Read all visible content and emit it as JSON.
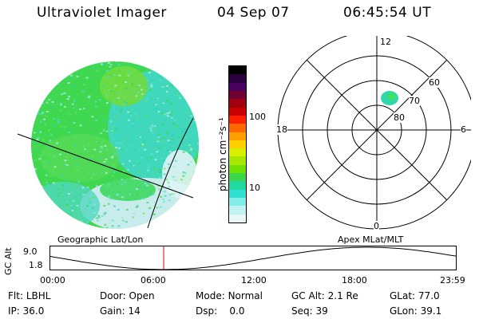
{
  "header": {
    "instrument": "Ultraviolet Imager",
    "date": "04 Sep 07",
    "time": "06:45:54 UT"
  },
  "colorbar": {
    "unit_label": "photon cm⁻²s⁻¹",
    "ticks": [
      "100",
      "10"
    ],
    "colors": [
      "#000000",
      "#2a0040",
      "#4a0060",
      "#700030",
      "#a00010",
      "#c80000",
      "#ff2000",
      "#ff6a00",
      "#ff9f00",
      "#ffd000",
      "#d8f000",
      "#a8e800",
      "#6fe000",
      "#3dd84a",
      "#20d8a0",
      "#30e0d0",
      "#80eee8",
      "#c0f4f0",
      "#e8f8f8"
    ]
  },
  "panel_labels": {
    "left": "Geographic Lat/Lon",
    "right": "Apex MLat/MLT"
  },
  "polar": {
    "mlt_labels": {
      "top": "12",
      "left": "18",
      "right": "6",
      "bottom": "0"
    },
    "lat_labels": [
      "60",
      "70",
      "80"
    ]
  },
  "orbit": {
    "ylabel": "GC Alt",
    "yticks": [
      "9.0",
      "1.8"
    ],
    "xticks": [
      "00:00",
      "06:00",
      "12:00",
      "18:00",
      "23:59"
    ],
    "marker_time": "06:45:54"
  },
  "footer": {
    "flt_label": "Flt:",
    "flt_value": "LBHL",
    "ip_label": "IP:",
    "ip_value": "36.0",
    "door_label": "Door:",
    "door_value": "Open",
    "gain_label": "Gain:",
    "gain_value": "14",
    "mode_label": "Mode:",
    "mode_value": "Normal",
    "dsp_label": "Dsp:",
    "dsp_value": "0.0",
    "gcalt_label": "GC Alt:",
    "gcalt_value": "2.1 Re",
    "seq_label": "Seq:",
    "seq_value": "39",
    "glat_label": "GLat:",
    "glat_value": "77.0",
    "glon_label": "GLon:",
    "glon_value": "39.1"
  }
}
